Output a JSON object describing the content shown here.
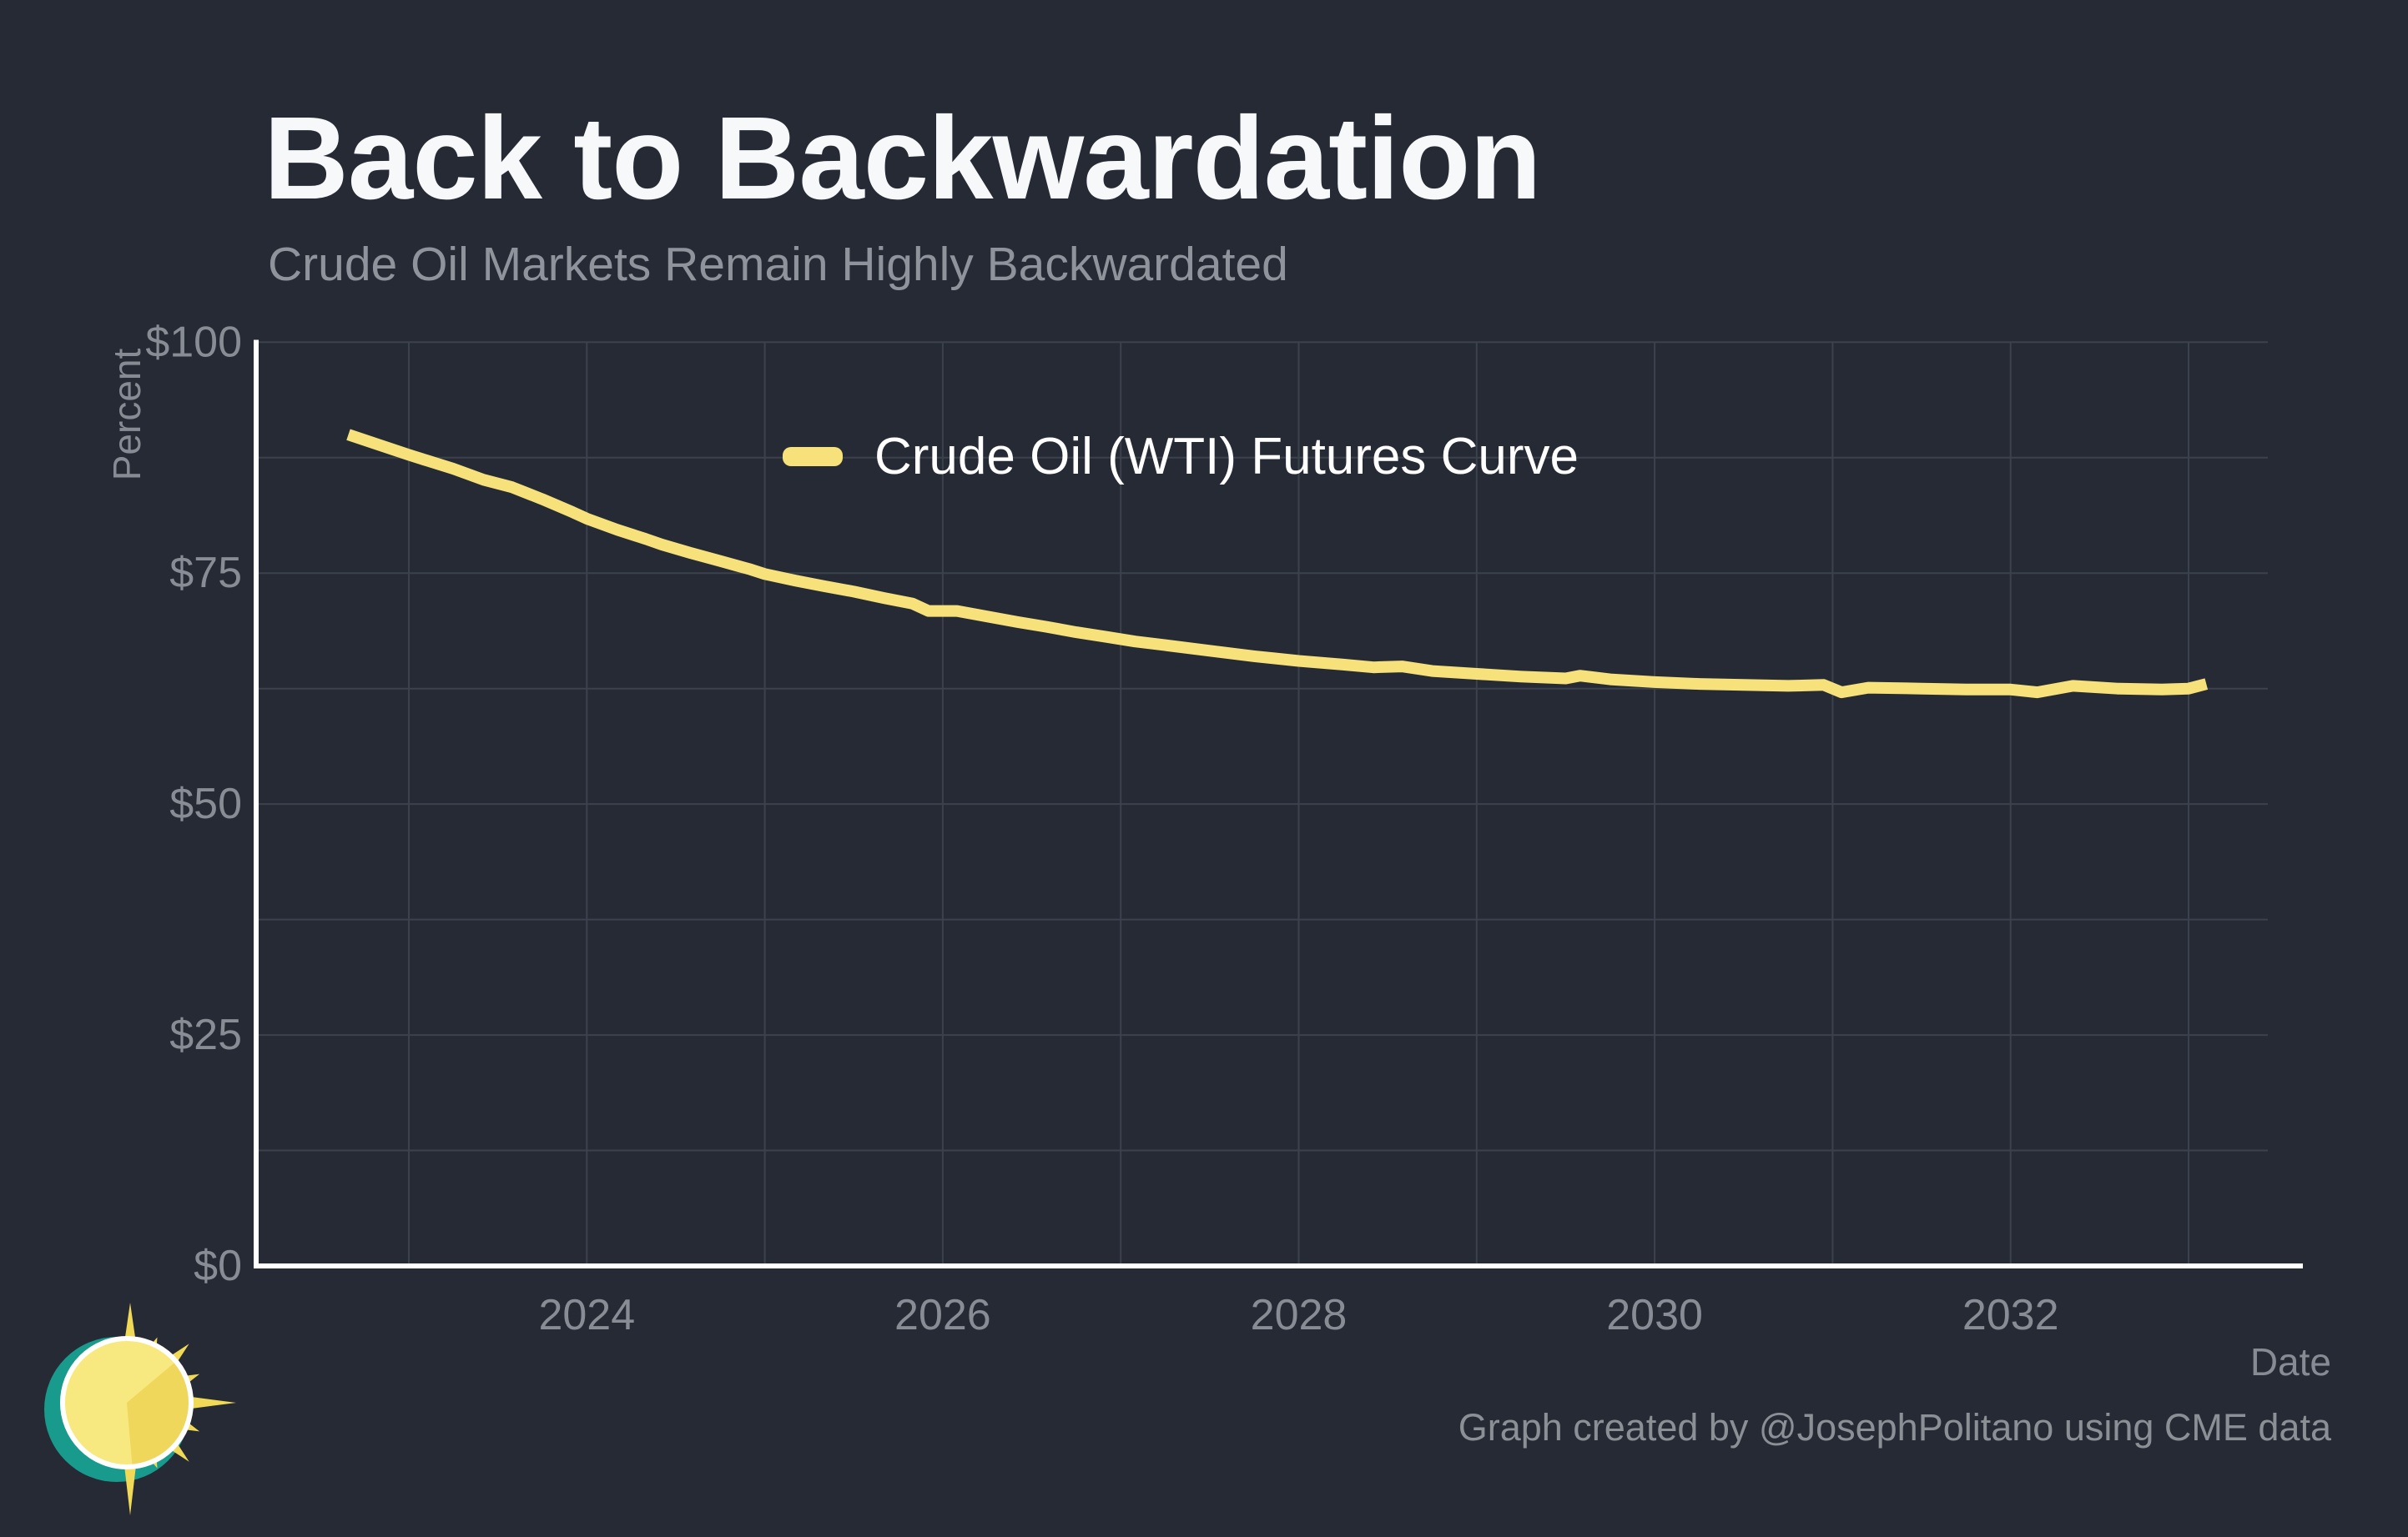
{
  "header": {
    "title": "Back to Backwardation",
    "subtitle": "Crude Oil Markets Remain Highly Backwardated"
  },
  "legend": {
    "label": "Crude Oil (WTI) Futures Curve"
  },
  "footer": {
    "credit": "Graph created by @JosephPolitano using CME data"
  },
  "colors": {
    "background": "#262a34",
    "line": "#f6e17b",
    "grid": "#3c424d",
    "axis": "#ffffff",
    "tick_text": "#888d95",
    "title_text": "#f7f8f9",
    "subtitle_text": "#8e939c",
    "legend_text": "#ffffff",
    "logo_teal": "#189a8d",
    "logo_yellow": "#f0d957",
    "logo_disc_light": "#f7e87f",
    "logo_disc_dark": "#eed75a",
    "logo_ring": "#ffffff"
  },
  "icons": {
    "logo": "sun-logo"
  },
  "chart_data": {
    "type": "line",
    "title": "Back to Backwardation",
    "subtitle": "Crude Oil Markets Remain Highly Backwardated",
    "xlabel": "Date",
    "ylabel": "Percent",
    "xlim": [
      2022.14,
      2033.45
    ],
    "ylim": [
      0,
      100
    ],
    "grid": {
      "shown": true,
      "x_step_years": 1,
      "y_step": 12.5
    },
    "legend_position": "inside-top-center",
    "x_ticks": {
      "values": [
        2024,
        2026,
        2028,
        2030,
        2032
      ],
      "labels": [
        "2024",
        "2026",
        "2028",
        "2030",
        "2032"
      ]
    },
    "y_ticks": {
      "values": [
        0,
        25,
        50,
        75,
        100
      ],
      "labels": [
        "$0",
        "$25",
        "$50",
        "$75",
        "$100"
      ]
    },
    "series": [
      {
        "name": "Crude Oil (WTI) Futures Curve",
        "color": "#f6e17b",
        "x": [
          2022.66,
          2022.83,
          2023.0,
          2023.1,
          2023.25,
          2023.42,
          2023.58,
          2023.75,
          2023.92,
          2024.0,
          2024.17,
          2024.33,
          2024.42,
          2024.58,
          2024.75,
          2024.92,
          2025.0,
          2025.17,
          2025.33,
          2025.5,
          2025.67,
          2025.83,
          2025.92,
          2026.08,
          2026.25,
          2026.42,
          2026.58,
          2026.75,
          2026.92,
          2027.08,
          2027.25,
          2027.5,
          2027.75,
          2028.0,
          2028.25,
          2028.42,
          2028.58,
          2028.75,
          2029.0,
          2029.25,
          2029.5,
          2029.58,
          2029.75,
          2030.0,
          2030.25,
          2030.5,
          2030.75,
          2030.95,
          2031.05,
          2031.2,
          2031.5,
          2031.75,
          2032.0,
          2032.15,
          2032.35,
          2032.6,
          2032.85,
          2033.0,
          2033.1
        ],
        "y": [
          90.0,
          88.9,
          87.8,
          87.2,
          86.3,
          85.1,
          84.3,
          83.0,
          81.6,
          80.9,
          79.7,
          78.7,
          78.1,
          77.2,
          76.3,
          75.4,
          74.9,
          74.2,
          73.6,
          73.0,
          72.3,
          71.7,
          70.9,
          70.9,
          70.3,
          69.7,
          69.2,
          68.6,
          68.1,
          67.6,
          67.2,
          66.6,
          66.0,
          65.5,
          65.1,
          64.8,
          64.9,
          64.4,
          64.1,
          63.8,
          63.6,
          63.9,
          63.5,
          63.2,
          63.0,
          62.9,
          62.8,
          62.9,
          62.1,
          62.6,
          62.5,
          62.4,
          62.4,
          62.1,
          62.8,
          62.5,
          62.4,
          62.5,
          63.0
        ]
      }
    ]
  }
}
